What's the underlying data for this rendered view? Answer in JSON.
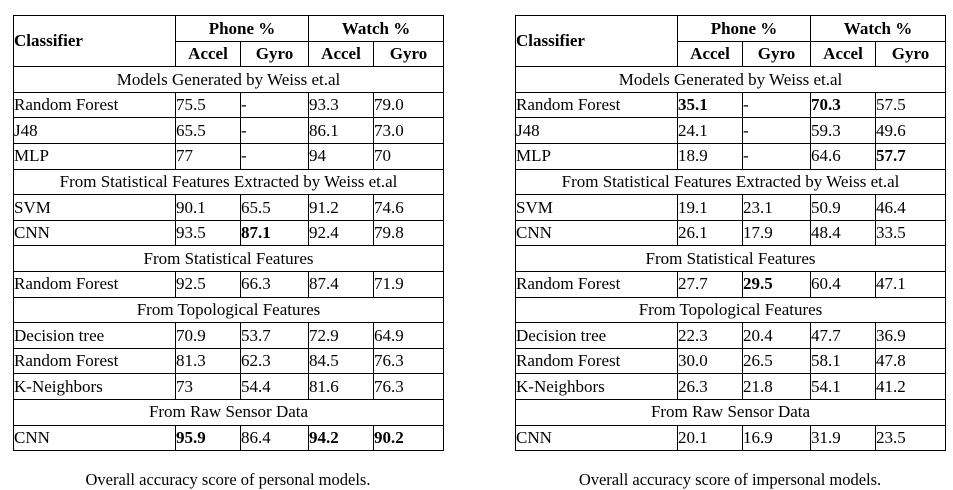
{
  "page": {
    "background": "#ffffff",
    "text_color": "#000000",
    "border_color": "#000000"
  },
  "tables": [
    {
      "caption": "Overall accuracy score of personal models.",
      "header": {
        "classifier_label": "Classifier",
        "groups": [
          {
            "label": "Phone %"
          },
          {
            "label": "Watch %"
          }
        ],
        "subcols": [
          "Accel",
          "Gyro",
          "Accel",
          "Gyro"
        ]
      },
      "sections": [
        {
          "title": "Models Generated by Weiss et.al",
          "rows": [
            {
              "label": "Random Forest",
              "values": [
                "75.5",
                "-",
                "93.3",
                "79.0"
              ],
              "bold": [
                false,
                false,
                false,
                false
              ]
            },
            {
              "label": "J48",
              "values": [
                "65.5",
                "-",
                "86.1",
                "73.0"
              ],
              "bold": [
                false,
                false,
                false,
                false
              ]
            },
            {
              "label": "MLP",
              "values": [
                "77",
                "-",
                "94",
                "70"
              ],
              "bold": [
                false,
                false,
                false,
                false
              ]
            }
          ]
        },
        {
          "title": "From Statistical Features Extracted by Weiss et.al",
          "rows": [
            {
              "label": "SVM",
              "values": [
                "90.1",
                "65.5",
                "91.2",
                "74.6"
              ],
              "bold": [
                false,
                false,
                false,
                false
              ]
            },
            {
              "label": "CNN",
              "values": [
                "93.5",
                "87.1",
                "92.4",
                "79.8"
              ],
              "bold": [
                false,
                true,
                false,
                false
              ]
            }
          ]
        },
        {
          "title": "From Statistical Features",
          "rows": [
            {
              "label": "Random Forest",
              "values": [
                "92.5",
                "66.3",
                "87.4",
                "71.9"
              ],
              "bold": [
                false,
                false,
                false,
                false
              ]
            }
          ]
        },
        {
          "title": "From Topological Features",
          "rows": [
            {
              "label": "Decision tree",
              "values": [
                "70.9",
                "53.7",
                "72.9",
                "64.9"
              ],
              "bold": [
                false,
                false,
                false,
                false
              ]
            },
            {
              "label": "Random Forest",
              "values": [
                "81.3",
                "62.3",
                "84.5",
                "76.3"
              ],
              "bold": [
                false,
                false,
                false,
                false
              ]
            },
            {
              "label": "K-Neighbors",
              "values": [
                "73",
                "54.4",
                "81.6",
                "76.3"
              ],
              "bold": [
                false,
                false,
                false,
                false
              ]
            }
          ]
        },
        {
          "title": "From Raw Sensor Data",
          "rows": [
            {
              "label": "CNN",
              "values": [
                "95.9",
                "86.4",
                "94.2",
                "90.2"
              ],
              "bold": [
                true,
                false,
                true,
                true
              ]
            }
          ]
        }
      ]
    },
    {
      "caption": "Overall accuracy score of impersonal models.",
      "header": {
        "classifier_label": "Classifier",
        "groups": [
          {
            "label": "Phone %"
          },
          {
            "label": "Watch %"
          }
        ],
        "subcols": [
          "Accel",
          "Gyro",
          "Accel",
          "Gyro"
        ]
      },
      "sections": [
        {
          "title": "Models Generated by Weiss et.al",
          "rows": [
            {
              "label": "Random Forest",
              "values": [
                "35.1",
                "-",
                "70.3",
                "57.5"
              ],
              "bold": [
                true,
                false,
                true,
                false
              ]
            },
            {
              "label": "J48",
              "values": [
                "24.1",
                "-",
                "59.3",
                "49.6"
              ],
              "bold": [
                false,
                false,
                false,
                false
              ]
            },
            {
              "label": "MLP",
              "values": [
                "18.9",
                "-",
                "64.6",
                "57.7"
              ],
              "bold": [
                false,
                false,
                false,
                true
              ]
            }
          ]
        },
        {
          "title": "From Statistical Features Extracted by Weiss et.al",
          "rows": [
            {
              "label": "SVM",
              "values": [
                "19.1",
                "23.1",
                "50.9",
                "46.4"
              ],
              "bold": [
                false,
                false,
                false,
                false
              ]
            },
            {
              "label": "CNN",
              "values": [
                "26.1",
                "17.9",
                "48.4",
                "33.5"
              ],
              "bold": [
                false,
                false,
                false,
                false
              ]
            }
          ]
        },
        {
          "title": "From Statistical Features",
          "rows": [
            {
              "label": "Random Forest",
              "values": [
                "27.7",
                "29.5",
                "60.4",
                "47.1"
              ],
              "bold": [
                false,
                true,
                false,
                false
              ]
            }
          ]
        },
        {
          "title": "From Topological Features",
          "rows": [
            {
              "label": "Decision tree",
              "values": [
                "22.3",
                "20.4",
                "47.7",
                "36.9"
              ],
              "bold": [
                false,
                false,
                false,
                false
              ]
            },
            {
              "label": "Random Forest",
              "values": [
                "30.0",
                "26.5",
                "58.1",
                "47.8"
              ],
              "bold": [
                false,
                false,
                false,
                false
              ]
            },
            {
              "label": "K-Neighbors",
              "values": [
                "26.3",
                "21.8",
                "54.1",
                "41.2"
              ],
              "bold": [
                false,
                false,
                false,
                false
              ]
            }
          ]
        },
        {
          "title": "From Raw Sensor Data",
          "rows": [
            {
              "label": "CNN",
              "values": [
                "20.1",
                "16.9",
                "31.9",
                "23.5"
              ],
              "bold": [
                false,
                false,
                false,
                false
              ]
            }
          ]
        }
      ]
    }
  ]
}
